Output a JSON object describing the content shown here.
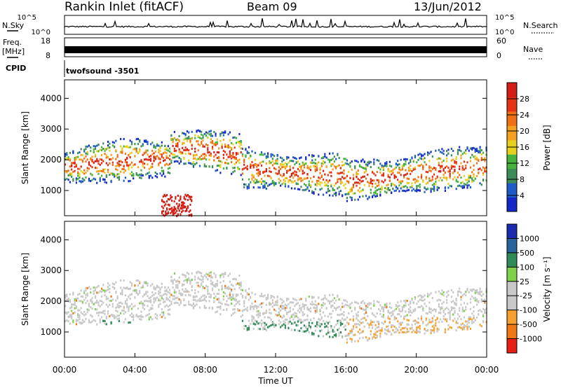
{
  "header": {
    "station": "Rankin Inlet (fitACF)",
    "beam": "Beam 09",
    "date": "13/Jun/2012"
  },
  "nsky_panel": {
    "left_label": "N.Sky",
    "left_ticks": [
      "10^5",
      "10^0"
    ],
    "right_ticks": [
      "10^5",
      "10^0"
    ],
    "right_label": "N.Search"
  },
  "freq_panel": {
    "left_label_line1": "Freq.",
    "left_label_line2": "[MHz]",
    "left_ticks": [
      "18",
      "8"
    ],
    "right_ticks": [
      "60",
      "0"
    ],
    "right_label": "Nave"
  },
  "cpid_panel": {
    "label": "CPID",
    "program": "twofsound -3501"
  },
  "colors": {
    "power": [
      "#1428c8",
      "#1e5ac8",
      "#3c8c5a",
      "#46b43c",
      "#e6d21e",
      "#f5a01e",
      "#f06e14",
      "#e63214",
      "#d21e14"
    ],
    "velocity": [
      "#1a2bb0",
      "#28649b",
      "#2e8b57",
      "#7fd04a",
      "#c8c8c8",
      "#c8c8c8",
      "#f5a030",
      "#f07814",
      "#e61e14"
    ]
  },
  "chart_data": [
    {
      "type": "heatmap",
      "name": "power",
      "ylabel": "Slant Range [km]",
      "xlabel": "",
      "x_ticks": [
        "00:00",
        "04:00",
        "08:00",
        "12:00",
        "16:00",
        "20:00",
        "00:00"
      ],
      "xlim_hours": [
        0,
        24
      ],
      "y_ticks": [
        "1000",
        "2000",
        "3000",
        "4000"
      ],
      "ylim": [
        180,
        4600
      ],
      "colorbar": {
        "label": "Power [dB]",
        "ticks": [
          "4",
          "8",
          "12",
          "16",
          "20",
          "24",
          "28"
        ]
      }
    },
    {
      "type": "heatmap",
      "name": "velocity",
      "ylabel": "Slant Range [km]",
      "xlabel": "Time UT",
      "x_ticks": [
        "00:00",
        "04:00",
        "08:00",
        "12:00",
        "16:00",
        "20:00",
        "00:00"
      ],
      "xlim_hours": [
        0,
        24
      ],
      "y_ticks": [
        "1000",
        "2000",
        "3000",
        "4000"
      ],
      "ylim": [
        180,
        4600
      ],
      "colorbar": {
        "label": "Velocity [m s⁻¹]",
        "ticks": [
          "1000",
          "500",
          "100",
          "25",
          "-25",
          "-100",
          "-500",
          "-1000"
        ]
      }
    }
  ]
}
